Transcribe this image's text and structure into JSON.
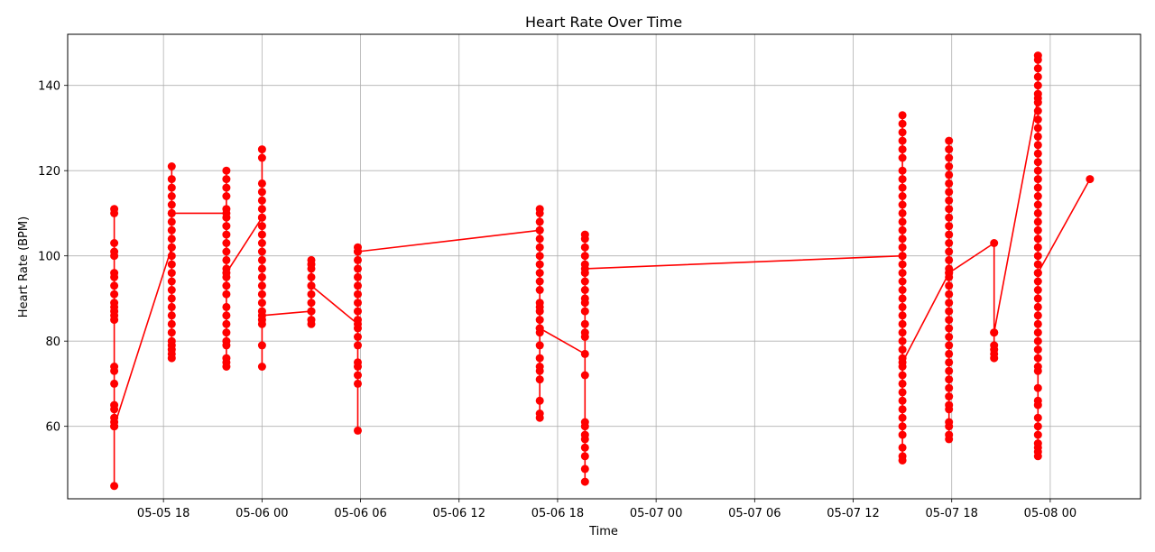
{
  "chart_data": {
    "type": "line",
    "title": "Heart Rate Over Time",
    "xlabel": "Time",
    "ylabel": "Heart Rate (BPM)",
    "grid": true,
    "legend": "none",
    "color": "#ff0000",
    "marker": "circle",
    "x_ticks": [
      "05-05 18",
      "05-06 00",
      "05-06 06",
      "05-06 12",
      "05-06 18",
      "05-07 00",
      "05-07 06",
      "05-07 12",
      "05-07 18",
      "05-08 00"
    ],
    "y_ticks": [
      60,
      80,
      100,
      120,
      140
    ],
    "xlim": [
      "2024-05-05T12:10",
      "2024-05-08T05:30"
    ],
    "ylim": [
      43,
      152
    ],
    "series": [
      {
        "segments": [
          {
            "t": "2024-05-05T15:00",
            "hr_order": [
              110,
              111,
              103,
              101,
              100,
              96,
              95,
              93,
              91,
              89,
              88,
              87,
              86,
              85,
              74,
              73,
              70,
              65,
              64,
              62,
              61,
              60,
              46,
              60
            ]
          },
          {
            "t": "2024-05-05T18:30",
            "hr_order": [
              102,
              121,
              118,
              116,
              114,
              112,
              110,
              108,
              106,
              104,
              102,
              100,
              98,
              96,
              94,
              92,
              90,
              88,
              86,
              84,
              82,
              80,
              79,
              78,
              77,
              76,
              110
            ]
          },
          {
            "t": "2024-05-05T21:50",
            "hr_order": [
              110,
              120,
              118,
              116,
              114,
              111,
              109,
              107,
              105,
              103,
              101,
              99,
              97,
              95,
              93,
              91,
              88,
              86,
              84,
              82,
              80,
              79,
              76,
              75,
              74,
              96
            ]
          },
          {
            "t": "2024-05-06T00:00",
            "hr_order": [
              109,
              125,
              123,
              117,
              115,
              113,
              111,
              109,
              107,
              105,
              103,
              101,
              99,
              97,
              95,
              93,
              91,
              89,
              87,
              85,
              84,
              79,
              74,
              86
            ]
          },
          {
            "t": "2024-05-06T03:00",
            "hr_order": [
              87,
              99,
              98,
              97,
              95,
              93,
              91,
              89,
              87,
              85,
              84,
              93
            ]
          },
          {
            "t": "2024-05-06T05:50",
            "hr_order": [
              84,
              102,
              101,
              99,
              97,
              95,
              93,
              91,
              89,
              87,
              85,
              83,
              81,
              79,
              75,
              74,
              72,
              70,
              59,
              101
            ]
          },
          {
            "t": "2024-05-06T16:55",
            "hr_order": [
              106,
              111,
              110,
              108,
              106,
              104,
              102,
              100,
              98,
              96,
              94,
              92,
              89,
              88,
              87,
              85,
              83,
              82,
              79,
              76,
              74,
              73,
              71,
              66,
              63,
              62,
              83
            ]
          },
          {
            "t": "2024-05-06T19:40",
            "hr_order": [
              77,
              105,
              104,
              102,
              100,
              98,
              96,
              94,
              92,
              90,
              89,
              87,
              84,
              82,
              81,
              72,
              61,
              60,
              58,
              57,
              55,
              53,
              50,
              47,
              97
            ]
          },
          {
            "t": "2024-05-07T15:00",
            "hr_order": [
              100,
              133,
              131,
              129,
              127,
              125,
              123,
              120,
              118,
              116,
              114,
              112,
              110,
              108,
              106,
              104,
              102,
              100,
              98,
              96,
              94,
              92,
              90,
              88,
              86,
              84,
              82,
              80,
              78,
              76,
              74,
              72,
              70,
              68,
              66,
              64,
              62,
              60,
              58,
              55,
              53,
              52,
              75
            ]
          },
          {
            "t": "2024-05-07T17:50",
            "hr_order": [
              96,
              127,
              125,
              123,
              121,
              119,
              117,
              115,
              113,
              111,
              109,
              107,
              105,
              103,
              101,
              99,
              97,
              95,
              93,
              91,
              89,
              87,
              85,
              83,
              81,
              79,
              77,
              75,
              73,
              71,
              69,
              67,
              65,
              64,
              61,
              60,
              58,
              57,
              96
            ]
          },
          {
            "t": "2024-05-07T20:35",
            "hr_order": [
              103,
              82,
              79,
              78,
              77,
              76,
              82
            ]
          },
          {
            "t": "2024-05-07T23:15",
            "hr_order": [
              137,
              147,
              146,
              144,
              142,
              140,
              138,
              136,
              134,
              132,
              130,
              128,
              126,
              124,
              122,
              120,
              118,
              116,
              114,
              112,
              110,
              108,
              106,
              104,
              102,
              100,
              98,
              96,
              94,
              92,
              90,
              88,
              86,
              84,
              82,
              80,
              78,
              76,
              74,
              73,
              69,
              66,
              65,
              62,
              60,
              58,
              56,
              55,
              54,
              53,
              96
            ]
          },
          {
            "t": "2024-05-08T02:25",
            "hr_order": [
              118
            ]
          }
        ]
      }
    ]
  }
}
